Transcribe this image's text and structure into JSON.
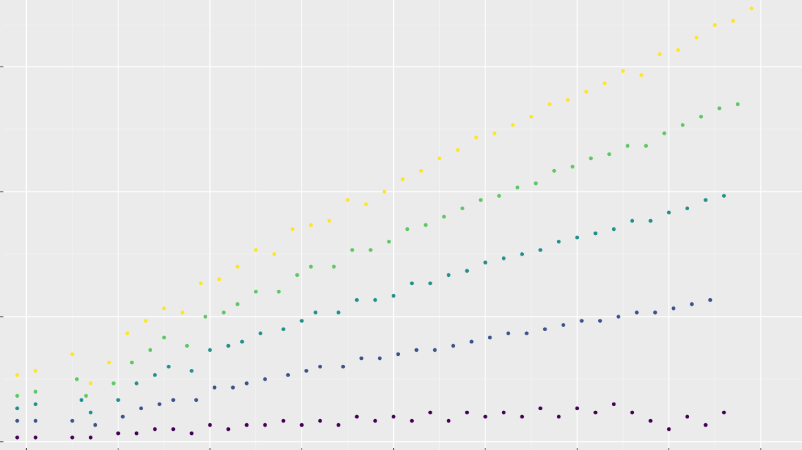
{
  "chart_data": {
    "type": "scatter",
    "title": "",
    "xlabel": "",
    "ylabel": "",
    "grid": true,
    "legend": "none",
    "xlim": [
      0.5,
      17.9
    ],
    "ylim": [
      -0.2,
      10.6
    ],
    "x_major_ticks": [
      1,
      3,
      5,
      7,
      9,
      11,
      13,
      15,
      17
    ],
    "x_minor_ticks": [
      2,
      4,
      6,
      8,
      10,
      12,
      14,
      16
    ],
    "y_major_ticks": [
      0,
      3,
      6,
      9
    ],
    "y_minor_ticks": [
      1.5,
      4.5,
      7.5,
      10
    ],
    "colors": {
      "panel_background": "#ebebeb",
      "grid_major": "#ffffff",
      "grid_minor": "#f5f5f5",
      "tick": "#333333",
      "palette": [
        "#440154",
        "#3b528b",
        "#21908c",
        "#5dc863",
        "#fde725"
      ]
    },
    "series": [
      {
        "x": [
          0.8,
          1.2,
          2.0,
          2.4,
          2.8,
          3.2,
          3.6,
          4.0,
          4.4,
          4.8,
          5.2,
          5.6,
          6.0,
          6.4,
          6.8,
          7.2,
          7.6,
          8.0,
          8.4,
          8.8,
          9.2,
          9.6,
          10.0,
          10.4,
          10.8,
          11.2,
          11.6,
          12.0,
          12.4,
          12.8,
          13.2,
          13.6,
          14.0,
          14.4,
          14.8,
          15.2,
          15.6,
          16.0,
          16.4,
          16.8
        ],
        "y": [
          1.6,
          1.7,
          2.1,
          1.4,
          1.9,
          2.6,
          2.9,
          3.2,
          3.1,
          3.8,
          3.9,
          4.2,
          4.6,
          4.5,
          5.1,
          5.2,
          5.3,
          5.8,
          5.7,
          6.0,
          6.3,
          6.5,
          6.8,
          7.0,
          7.3,
          7.4,
          7.6,
          7.8,
          8.1,
          8.2,
          8.4,
          8.6,
          8.9,
          8.8,
          9.3,
          9.4,
          9.7,
          10.0,
          10.1,
          10.4
        ],
        "color": "#fde725"
      },
      {
        "x": [
          0.8,
          1.2,
          2.1,
          2.3,
          2.9,
          3.3,
          3.7,
          4.0,
          4.5,
          4.9,
          5.3,
          5.6,
          6.0,
          6.5,
          6.9,
          7.2,
          7.7,
          8.1,
          8.5,
          8.9,
          9.3,
          9.7,
          10.1,
          10.5,
          10.9,
          11.3,
          11.7,
          12.1,
          12.5,
          12.9,
          13.3,
          13.7,
          14.1,
          14.5,
          14.9,
          15.3,
          15.7,
          16.1,
          16.5
        ],
        "y": [
          1.1,
          1.2,
          1.5,
          1.1,
          1.4,
          1.9,
          2.2,
          2.5,
          2.3,
          3.0,
          3.1,
          3.3,
          3.6,
          3.6,
          4.0,
          4.2,
          4.2,
          4.6,
          4.6,
          4.8,
          5.1,
          5.2,
          5.4,
          5.6,
          5.8,
          5.9,
          6.1,
          6.2,
          6.5,
          6.6,
          6.8,
          6.9,
          7.1,
          7.1,
          7.4,
          7.6,
          7.8,
          8.0,
          8.1
        ],
        "color": "#5dc863"
      },
      {
        "x": [
          0.8,
          1.2,
          2.2,
          2.4,
          3.0,
          3.4,
          3.8,
          4.1,
          4.6,
          5.0,
          5.4,
          5.7,
          6.1,
          6.6,
          7.0,
          7.3,
          7.8,
          8.2,
          8.6,
          9.0,
          9.4,
          9.8,
          10.2,
          10.6,
          11.0,
          11.4,
          11.8,
          12.2,
          12.6,
          13.0,
          13.4,
          13.8,
          14.2,
          14.6,
          15.0,
          15.4,
          15.8,
          16.2
        ],
        "y": [
          0.8,
          0.9,
          1.0,
          0.7,
          1.0,
          1.4,
          1.6,
          1.8,
          1.7,
          2.2,
          2.3,
          2.4,
          2.6,
          2.7,
          2.9,
          3.1,
          3.1,
          3.4,
          3.4,
          3.5,
          3.8,
          3.8,
          4.0,
          4.1,
          4.3,
          4.4,
          4.5,
          4.6,
          4.8,
          4.9,
          5.0,
          5.1,
          5.3,
          5.3,
          5.5,
          5.6,
          5.8,
          5.9
        ],
        "color": "#21908c"
      },
      {
        "x": [
          0.8,
          1.2,
          2.0,
          2.5,
          3.1,
          3.5,
          3.9,
          4.2,
          4.7,
          5.1,
          5.5,
          5.8,
          6.2,
          6.7,
          7.1,
          7.4,
          7.9,
          8.3,
          8.7,
          9.1,
          9.5,
          9.9,
          10.3,
          10.7,
          11.1,
          11.5,
          11.9,
          12.3,
          12.7,
          13.1,
          13.5,
          13.9,
          14.3,
          14.7,
          15.1,
          15.5,
          15.9
        ],
        "y": [
          0.5,
          0.5,
          0.5,
          0.4,
          0.6,
          0.8,
          0.9,
          1.0,
          1.0,
          1.3,
          1.3,
          1.4,
          1.5,
          1.6,
          1.7,
          1.8,
          1.8,
          2.0,
          2.0,
          2.1,
          2.2,
          2.2,
          2.3,
          2.4,
          2.5,
          2.6,
          2.6,
          2.7,
          2.8,
          2.9,
          2.9,
          3.0,
          3.1,
          3.1,
          3.2,
          3.3,
          3.4
        ],
        "color": "#3b528b"
      },
      {
        "x": [
          0.8,
          1.2,
          2.0,
          2.4,
          3.0,
          3.4,
          3.8,
          4.2,
          4.6,
          5.0,
          5.4,
          5.8,
          6.2,
          6.6,
          7.0,
          7.4,
          7.8,
          8.2,
          8.6,
          9.0,
          9.4,
          9.8,
          10.2,
          10.6,
          11.0,
          11.4,
          11.8,
          12.2,
          12.6,
          13.0,
          13.4,
          13.8,
          14.2,
          14.6,
          15.0,
          15.4,
          15.8,
          16.2
        ],
        "y": [
          0.1,
          0.1,
          0.1,
          0.1,
          0.2,
          0.2,
          0.3,
          0.3,
          0.2,
          0.4,
          0.3,
          0.4,
          0.4,
          0.5,
          0.4,
          0.5,
          0.4,
          0.6,
          0.5,
          0.6,
          0.5,
          0.7,
          0.5,
          0.7,
          0.6,
          0.7,
          0.6,
          0.8,
          0.6,
          0.8,
          0.7,
          0.9,
          0.7,
          0.5,
          0.3,
          0.6,
          0.4,
          0.7
        ],
        "color": "#440154"
      }
    ]
  }
}
